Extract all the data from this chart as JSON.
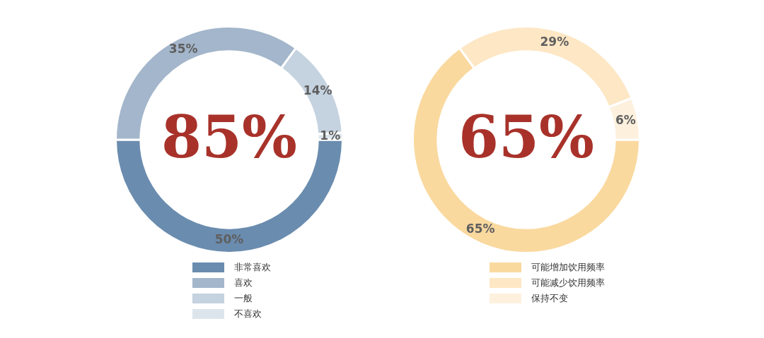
{
  "chart_data": [
    {
      "type": "donut",
      "categories": [
        "非常喜欢",
        "喜欢",
        "一般",
        "不喜欢"
      ],
      "values": [
        50,
        35,
        14,
        1
      ],
      "colors": [
        "#6a8caf",
        "#a3b6cb",
        "#c5d2df",
        "#dde5ec"
      ],
      "value_labels": [
        "50%",
        "35%",
        "14%",
        "1%"
      ],
      "annotations": [
        "85%"
      ],
      "legend": "bottom"
    },
    {
      "type": "donut",
      "categories": [
        "可能增加饮用频率",
        "可能减少饮用频率",
        "保持不变"
      ],
      "values": [
        65,
        29,
        6
      ],
      "colors": [
        "#fad99f",
        "#fde7c5",
        "#fdf1de"
      ],
      "value_labels": [
        "65%",
        "29%",
        "6%"
      ],
      "annotations": [
        "65%"
      ],
      "legend": "bottom"
    }
  ]
}
